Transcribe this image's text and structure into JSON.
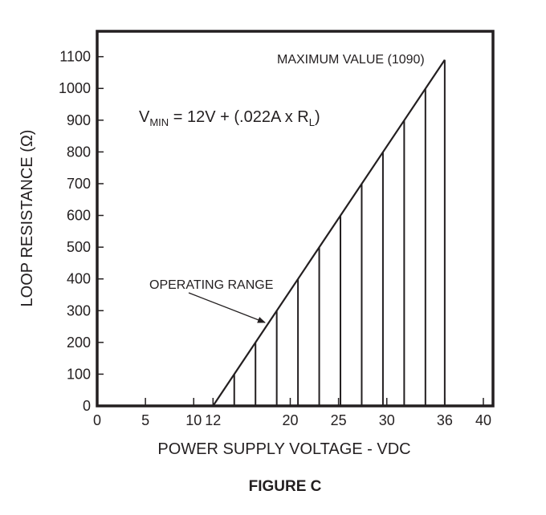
{
  "figure_caption": "FIGURE  C",
  "chart_data": {
    "type": "line",
    "xlabel": "POWER SUPPLY VOLTAGE - VDC",
    "ylabel": "LOOP RESISTANCE (Ω)",
    "xlim": [
      0,
      41
    ],
    "ylim": [
      0,
      1180
    ],
    "x_ticks": [
      0,
      5,
      10,
      12,
      20,
      25,
      30,
      36,
      40
    ],
    "y_ticks": [
      0,
      100,
      200,
      300,
      400,
      500,
      600,
      700,
      800,
      900,
      1000,
      1100
    ],
    "grid": false,
    "series": [
      {
        "x": [
          12,
          36
        ],
        "y": [
          0,
          1090
        ]
      }
    ],
    "operating_range_hatch_x": [
      14.2,
      16.4,
      18.6,
      20.8,
      23.0,
      25.2,
      27.4,
      29.6,
      31.8,
      34.0,
      36.0
    ],
    "formula": {
      "prefix": "V",
      "subscript": "MIN",
      "middle": " = 12V + (.022A x R",
      "subscript2": "L",
      "suffix": ")"
    },
    "annotations": {
      "maximum_value": "MAXIMUM VALUE (1090)",
      "operating_range": "OPERATING RANGE"
    },
    "colors": {
      "ink": "#231f20",
      "background": "#ffffff"
    }
  }
}
